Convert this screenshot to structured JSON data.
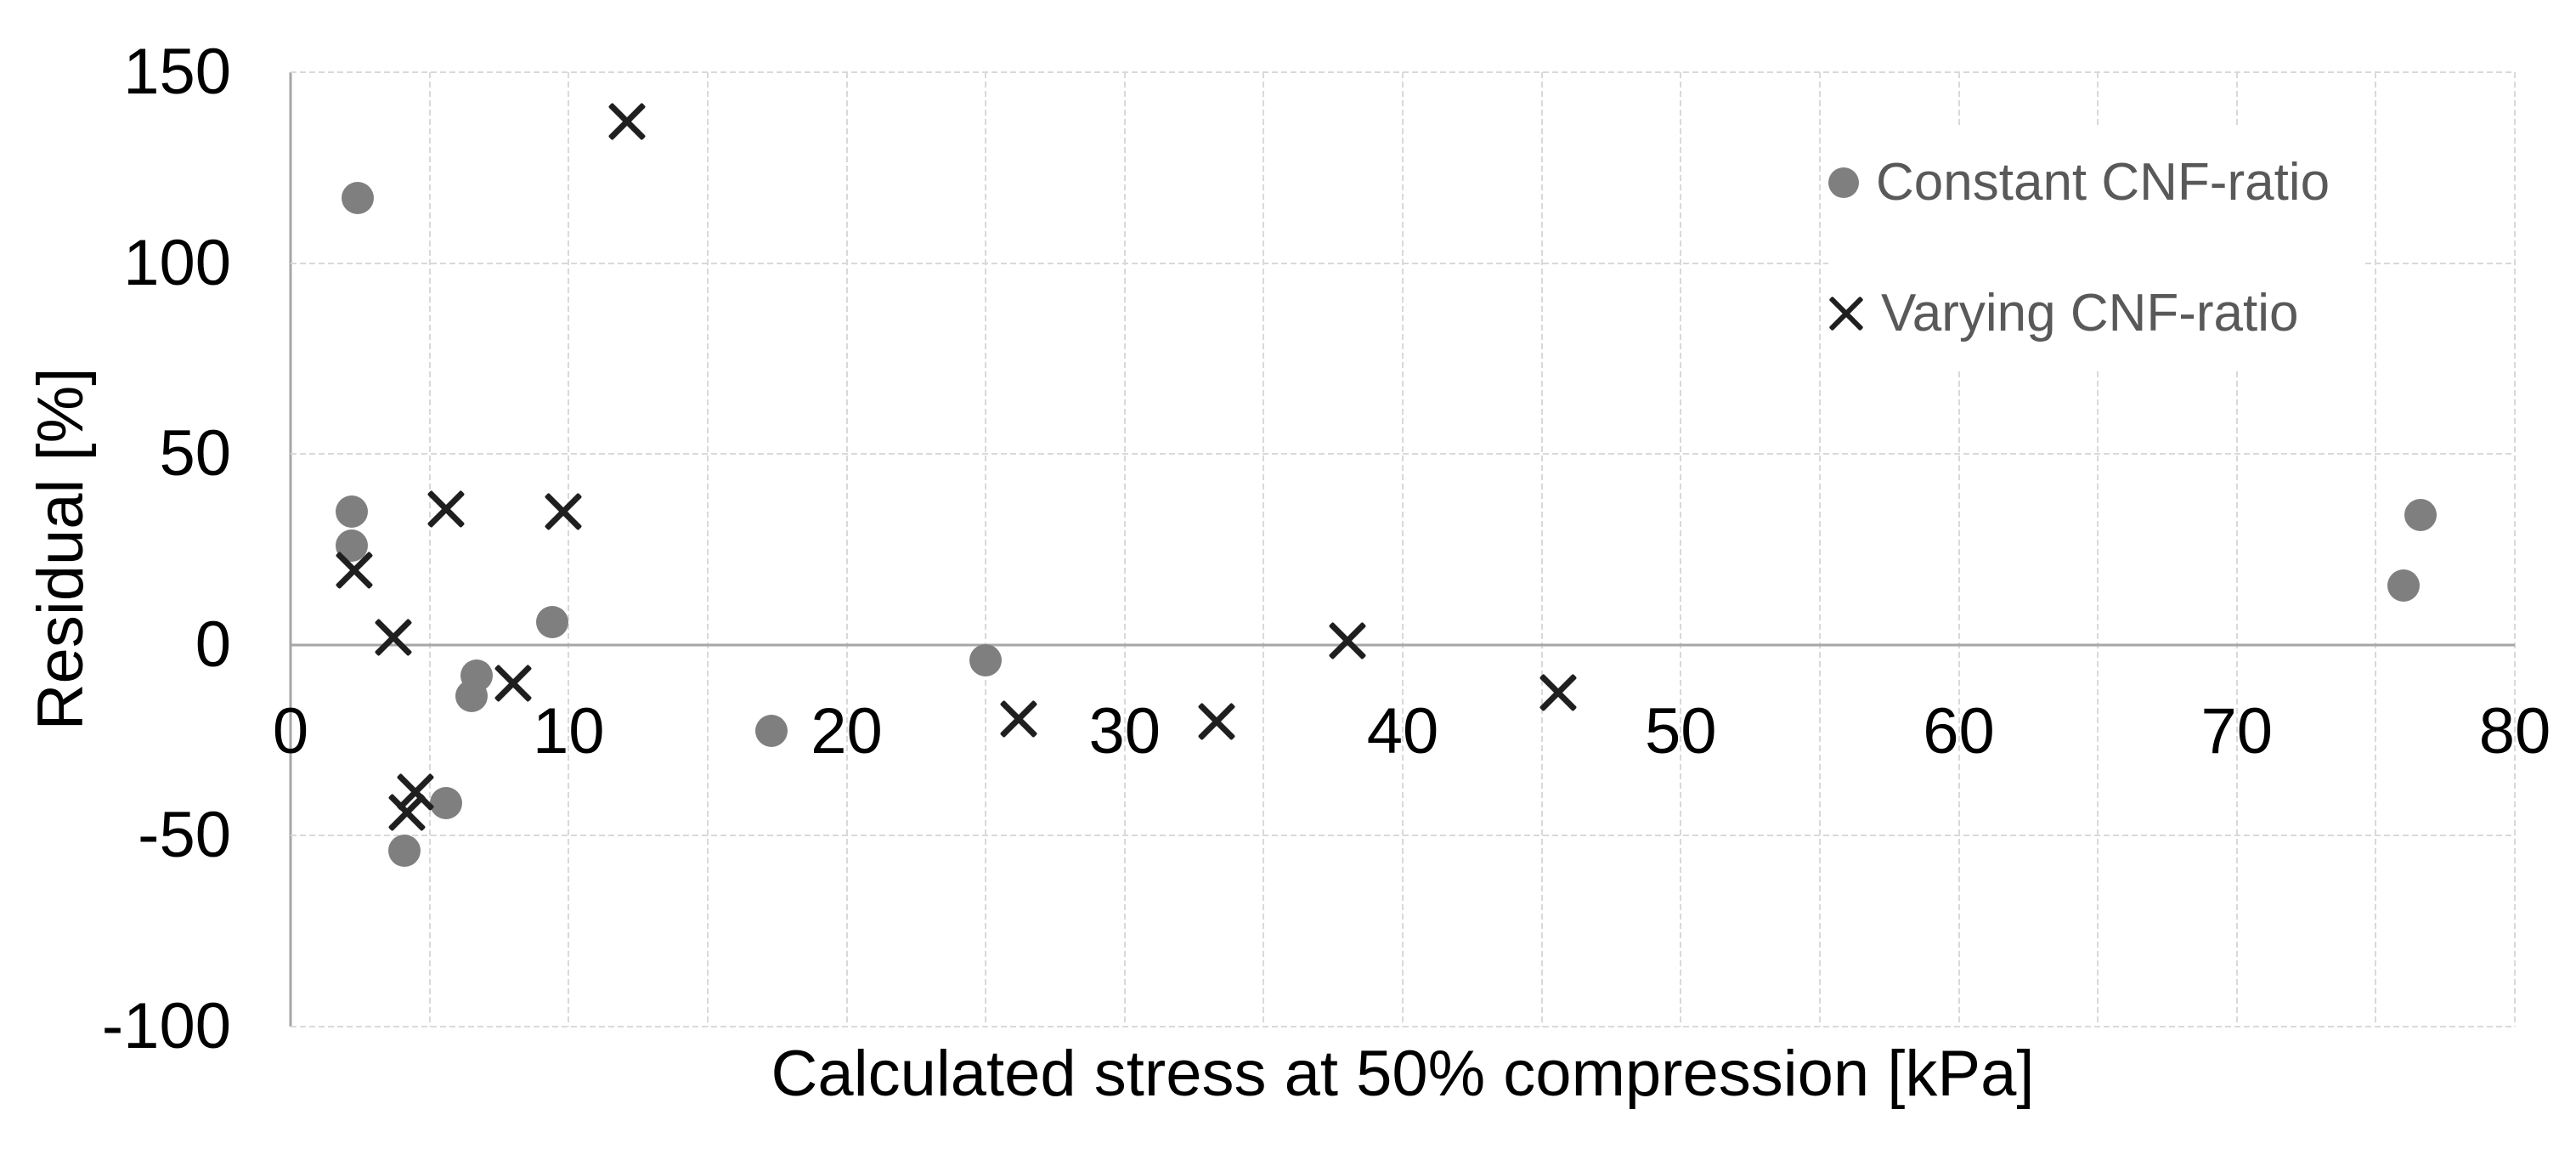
{
  "page": {
    "background": "#ffffff"
  },
  "colors": {
    "gridline": "#d9d9d9",
    "axis_line": "#a6a6a6",
    "tick_label": "#000000",
    "axis_title": "#000000",
    "legend_text": "#595959",
    "constant_marker": "#7f7f7f",
    "varying_marker": "#1f1f1f"
  },
  "chart_data": {
    "type": "scatter",
    "title": "",
    "xlabel": "Calculated stress at 50% compression [kPa]",
    "ylabel": "Residual [%]",
    "xlim": [
      0,
      80
    ],
    "ylim": [
      -100,
      150
    ],
    "x_ticks": [
      0,
      10,
      20,
      30,
      40,
      50,
      60,
      70,
      80
    ],
    "x_gridline_step": 5,
    "y_ticks": [
      150,
      100,
      50,
      0,
      -50,
      -100
    ],
    "grid": true,
    "legend_position": "inside-top-right",
    "series": [
      {
        "name": "Constant CNF-ratio",
        "marker": "circle",
        "color": "#7f7f7f",
        "points": [
          [
            2.4,
            117
          ],
          [
            2.2,
            35
          ],
          [
            2.2,
            26
          ],
          [
            4.1,
            -54
          ],
          [
            5.6,
            -41.5
          ],
          [
            6.5,
            -13.5
          ],
          [
            6.7,
            -8
          ],
          [
            9.4,
            6
          ],
          [
            17.3,
            -22.5
          ],
          [
            25,
            -4
          ],
          [
            76,
            15.5
          ],
          [
            76.6,
            34
          ]
        ]
      },
      {
        "name": "Varying CNF-ratio",
        "marker": "x",
        "color": "#1f1f1f",
        "points": [
          [
            2.3,
            19.5
          ],
          [
            3.7,
            2
          ],
          [
            4.2,
            -44
          ],
          [
            4.5,
            -38.5
          ],
          [
            5.6,
            35.5
          ],
          [
            8,
            -10
          ],
          [
            9.8,
            35
          ],
          [
            12.1,
            137
          ],
          [
            26.2,
            -19.5
          ],
          [
            33.3,
            -20
          ],
          [
            38,
            1
          ],
          [
            45.6,
            -12.5
          ]
        ]
      }
    ]
  }
}
